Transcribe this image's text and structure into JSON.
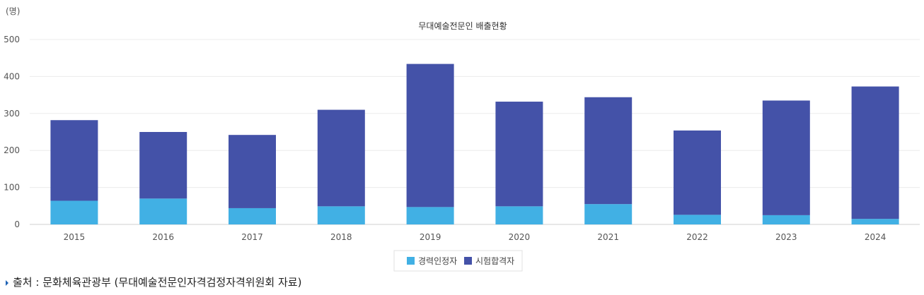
{
  "chart_data": {
    "type": "bar",
    "stacked": true,
    "title": "무대예술전문인 배출현황",
    "unit_label": "(명)",
    "categories": [
      "2015",
      "2016",
      "2017",
      "2018",
      "2019",
      "2020",
      "2021",
      "2022",
      "2023",
      "2024"
    ],
    "series": [
      {
        "name": "경력인정자",
        "color": "#41b0e4",
        "values": [
          64,
          70,
          44,
          49,
          47,
          49,
          55,
          26,
          25,
          15
        ]
      },
      {
        "name": "시험합격자",
        "color": "#4452a8",
        "values": [
          218,
          180,
          198,
          261,
          387,
          283,
          289,
          228,
          310,
          358
        ]
      }
    ],
    "ylim": [
      0,
      500
    ],
    "yticks": [
      0,
      100,
      200,
      300,
      400,
      500
    ],
    "grid": true,
    "legend_position": "bottom"
  },
  "footer": {
    "source": "출처 : 문화체육관광부 (무대예술전문인자격검정자격위원회 자료)"
  }
}
